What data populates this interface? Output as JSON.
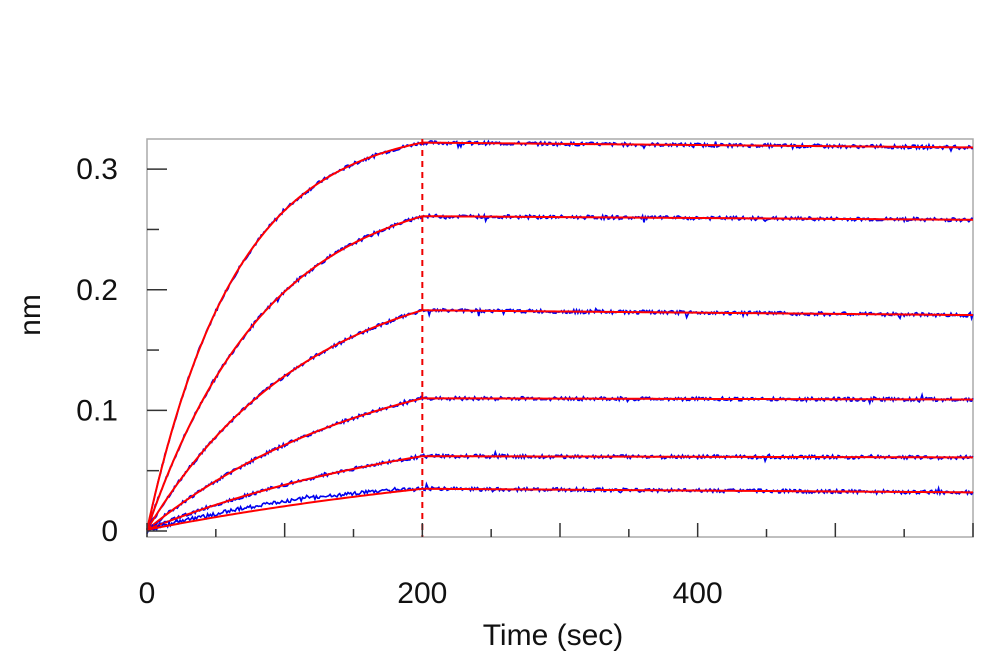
{
  "chart_data": {
    "type": "line",
    "title": "",
    "xlabel": "Time (sec)",
    "ylabel": "nm",
    "xlim": [
      0,
      600
    ],
    "ylim": [
      -0.005,
      0.325
    ],
    "x_ticks": [
      0,
      200,
      400
    ],
    "x_tick_labels": [
      "0",
      "200",
      "400"
    ],
    "y_ticks": [
      0,
      0.1,
      0.2,
      0.3
    ],
    "y_tick_labels": [
      "0",
      "0.1",
      "0.2",
      "0.3"
    ],
    "grid": false,
    "legend": "none",
    "marker_line": {
      "x": 200,
      "style": "dashed"
    },
    "association_end": 200,
    "series": [
      {
        "values": [
          0.001,
          0.322,
          0.318
        ]
      },
      {
        "values": [
          0.001,
          0.261,
          0.258
        ]
      },
      {
        "values": [
          0.001,
          0.183,
          0.179
        ]
      },
      {
        "values": [
          0.001,
          0.11,
          0.109
        ]
      },
      {
        "values": [
          0.001,
          0.062,
          0.061
        ]
      },
      {
        "values": [
          0.001,
          0.035,
          0.032
        ]
      }
    ],
    "colors": {
      "measured": "#0000ee",
      "fit": "#ff0000",
      "marker": "#ee0000",
      "frame": "#aaaaaa"
    }
  }
}
